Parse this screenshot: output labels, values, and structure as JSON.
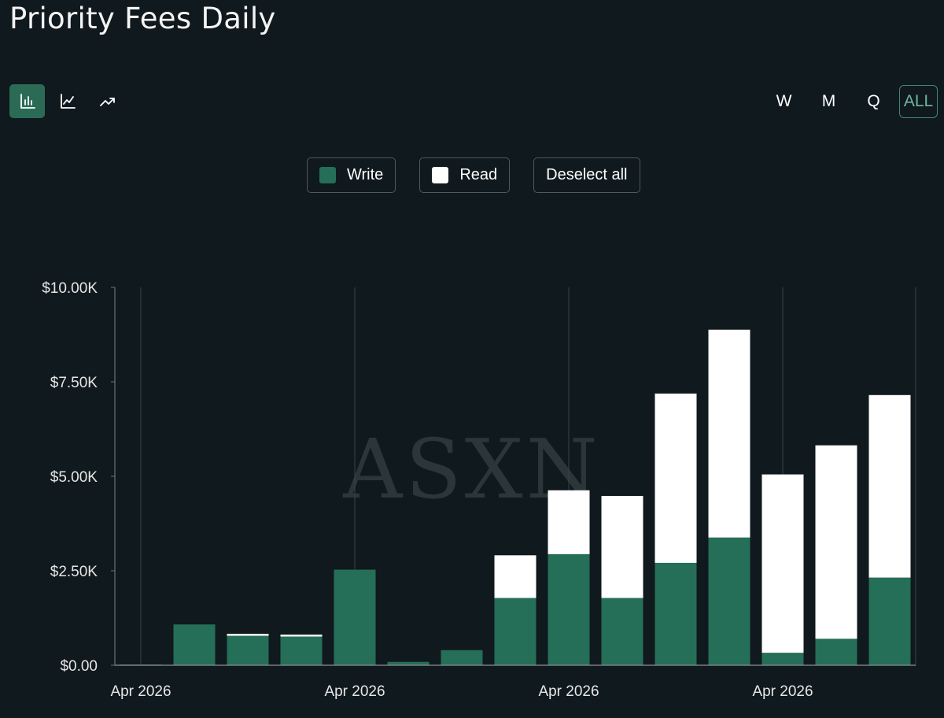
{
  "title": "Priority Fees Daily",
  "toolbar": {
    "chart_types": [
      {
        "name": "bar-chart-icon",
        "active": true
      },
      {
        "name": "line-chart-icon",
        "active": false
      },
      {
        "name": "trend-chart-icon",
        "active": false
      }
    ],
    "ranges": [
      "W",
      "M",
      "Q",
      "ALL"
    ],
    "active_range": "ALL"
  },
  "legend": {
    "write_label": "Write",
    "read_label": "Read",
    "deselect_label": "Deselect all"
  },
  "watermark": "ASXN",
  "colors": {
    "background": "#10191d",
    "write": "#256e58",
    "read": "#ffffff",
    "grid": "#3a4346",
    "accent": "#3f8a70"
  },
  "chart_data": {
    "type": "bar",
    "stacked": true,
    "x_tick_labels": [
      "Apr 2026",
      "Apr 2026",
      "Apr 2026",
      "Apr 2026"
    ],
    "y_tick_labels": [
      "$0.00",
      "$2.50K",
      "$5.00K",
      "$7.50K",
      "$10.00K"
    ],
    "ylim": [
      0,
      10000
    ],
    "series": [
      {
        "name": "Write",
        "color": "#256e58",
        "values": [
          20,
          1080,
          780,
          760,
          2530,
          90,
          400,
          1780,
          2940,
          1780,
          2710,
          3380,
          330,
          700,
          2320
        ]
      },
      {
        "name": "Read",
        "color": "#ffffff",
        "values": [
          0,
          0,
          50,
          50,
          0,
          0,
          0,
          1130,
          1690,
          2700,
          4480,
          5500,
          4720,
          5120,
          4830
        ]
      }
    ],
    "grid": "vertical",
    "legend_position": "top"
  }
}
